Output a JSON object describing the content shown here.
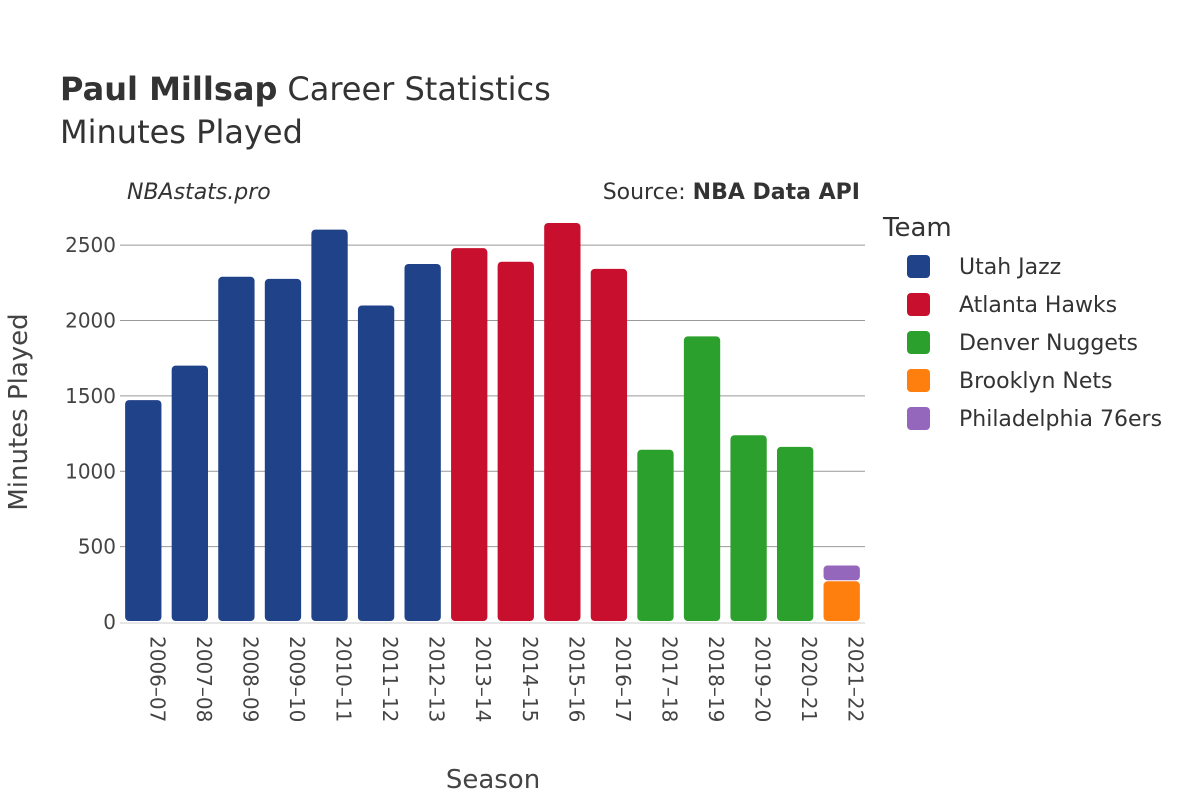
{
  "header": {
    "player_name": "Paul Millsap",
    "title_suffix": "Career Statistics",
    "subtitle": "Minutes Played",
    "site": "NBAstats.pro",
    "source_prefix": "Source: ",
    "source_name": "NBA Data API"
  },
  "chart_data": {
    "type": "bar",
    "stacked": true,
    "xlabel": "Season",
    "ylabel": "Minutes Played",
    "ylim": [
      0,
      2700
    ],
    "yticks": [
      0,
      500,
      1000,
      1500,
      2000,
      2500
    ],
    "grid": true,
    "legend_title": "Team",
    "legend_position": "right",
    "categories": [
      "2006–07",
      "2007–08",
      "2008–09",
      "2009–10",
      "2010–11",
      "2011–12",
      "2012–13",
      "2013–14",
      "2014–15",
      "2015–16",
      "2016–17",
      "2017–18",
      "2018–19",
      "2019–20",
      "2020–21",
      "2021–22"
    ],
    "series": [
      {
        "name": "Utah Jazz",
        "color": "#1f4288",
        "values": [
          1472,
          1701,
          2290,
          2276,
          2603,
          2100,
          2375,
          null,
          null,
          null,
          null,
          null,
          null,
          null,
          null,
          null
        ]
      },
      {
        "name": "Atlanta Hawks",
        "color": "#c8102e",
        "values": [
          null,
          null,
          null,
          null,
          null,
          null,
          null,
          2480,
          2390,
          2647,
          2343,
          null,
          null,
          null,
          null,
          null
        ]
      },
      {
        "name": "Denver Nuggets",
        "color": "#2ca02c",
        "values": [
          null,
          null,
          null,
          null,
          null,
          null,
          null,
          null,
          null,
          null,
          null,
          1143,
          1895,
          1239,
          1162,
          null
        ]
      },
      {
        "name": "Brooklyn Nets",
        "color": "#ff7f0e",
        "values": [
          null,
          null,
          null,
          null,
          null,
          null,
          null,
          null,
          null,
          null,
          null,
          null,
          null,
          null,
          null,
          270
        ]
      },
      {
        "name": "Philadelphia 76ers",
        "color": "#9467bd",
        "values": [
          null,
          null,
          null,
          null,
          null,
          null,
          null,
          null,
          null,
          null,
          null,
          null,
          null,
          null,
          null,
          105
        ]
      }
    ]
  }
}
